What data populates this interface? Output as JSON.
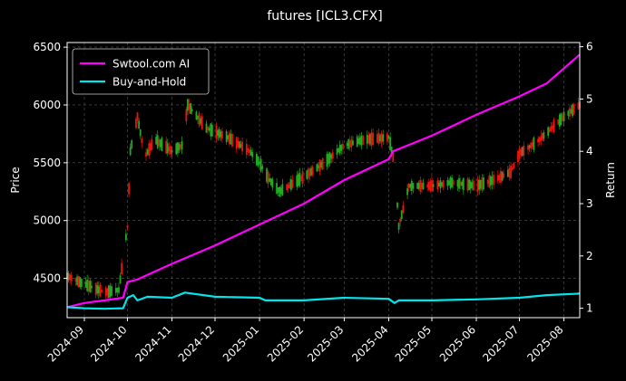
{
  "chart_data": {
    "type": "line",
    "title": "futures [ICL3.CFX]",
    "left_axis": {
      "label": "Price",
      "ylim": [
        4160,
        6540
      ],
      "ticks": [
        4500,
        5000,
        5500,
        6000,
        6500
      ]
    },
    "right_axis": {
      "label": "Return",
      "ylim": [
        0.82,
        6.08
      ],
      "ticks": [
        1,
        2,
        3,
        4,
        5,
        6
      ]
    },
    "x_axis": {
      "range": [
        "2024-08-20",
        "2025-08-12"
      ],
      "tick_labels": [
        "2024-09",
        "2024-10",
        "2024-11",
        "2024-12",
        "2025-01",
        "2025-02",
        "2025-03",
        "2025-04",
        "2025-05",
        "2025-06",
        "2025-07",
        "2025-08"
      ],
      "tick_dates": [
        "2024-09-01",
        "2024-10-01",
        "2024-11-01",
        "2024-12-01",
        "2025-01-01",
        "2025-02-01",
        "2025-03-01",
        "2025-04-01",
        "2025-05-01",
        "2025-06-01",
        "2025-07-01",
        "2025-08-01"
      ]
    },
    "grid": true,
    "legend": {
      "placement": "top-left",
      "entries": [
        "Swtool.com AI",
        "Buy-and-Hold"
      ]
    },
    "candles_anchor": {
      "dates": [
        "2024-08-20",
        "2024-09-01",
        "2024-09-15",
        "2024-09-25",
        "2024-10-01",
        "2024-10-03",
        "2024-10-08",
        "2024-10-13",
        "2024-10-20",
        "2024-11-01",
        "2024-11-08",
        "2024-11-12",
        "2024-11-25",
        "2024-12-10",
        "2024-12-25",
        "2025-01-01",
        "2025-01-08",
        "2025-01-15",
        "2025-02-01",
        "2025-02-15",
        "2025-03-01",
        "2025-03-15",
        "2025-04-01",
        "2025-04-05",
        "2025-04-08",
        "2025-04-15",
        "2025-05-01",
        "2025-05-15",
        "2025-06-01",
        "2025-06-15",
        "2025-06-25",
        "2025-07-01",
        "2025-07-15",
        "2025-08-01",
        "2025-08-12"
      ],
      "close": [
        4520,
        4450,
        4380,
        4400,
        4950,
        5600,
        5900,
        5550,
        5700,
        5600,
        5650,
        6000,
        5800,
        5720,
        5600,
        5500,
        5350,
        5250,
        5380,
        5500,
        5650,
        5700,
        5720,
        5500,
        4950,
        5300,
        5300,
        5330,
        5300,
        5360,
        5420,
        5580,
        5700,
        5900,
        6000
      ]
    },
    "series": [
      {
        "name": "Swtool.com AI",
        "color": "#ff00ff",
        "dates": [
          "2024-08-20",
          "2024-09-01",
          "2024-09-15",
          "2024-09-28",
          "2024-10-01",
          "2024-10-08",
          "2024-11-01",
          "2024-12-01",
          "2025-01-01",
          "2025-02-01",
          "2025-03-01",
          "2025-04-01",
          "2025-04-04",
          "2025-05-01",
          "2025-06-01",
          "2025-07-01",
          "2025-07-20",
          "2025-08-12"
        ],
        "values": [
          1.02,
          1.1,
          1.15,
          1.2,
          1.5,
          1.55,
          1.85,
          2.2,
          2.6,
          3.0,
          3.45,
          3.85,
          4.0,
          4.3,
          4.7,
          5.05,
          5.3,
          5.85
        ]
      },
      {
        "name": "Buy-and-Hold",
        "color": "#00e5ee",
        "dates": [
          "2024-08-20",
          "2024-09-01",
          "2024-09-15",
          "2024-09-28",
          "2024-10-01",
          "2024-10-05",
          "2024-10-08",
          "2024-10-15",
          "2024-11-01",
          "2024-11-10",
          "2024-12-01",
          "2025-01-01",
          "2025-01-05",
          "2025-02-01",
          "2025-03-01",
          "2025-04-01",
          "2025-04-05",
          "2025-04-08",
          "2025-05-01",
          "2025-06-01",
          "2025-07-01",
          "2025-07-20",
          "2025-08-12"
        ],
        "values": [
          1.02,
          1.0,
          0.99,
          1.0,
          1.2,
          1.25,
          1.15,
          1.22,
          1.2,
          1.3,
          1.22,
          1.2,
          1.15,
          1.15,
          1.2,
          1.18,
          1.1,
          1.15,
          1.15,
          1.17,
          1.2,
          1.25,
          1.28
        ]
      }
    ]
  }
}
